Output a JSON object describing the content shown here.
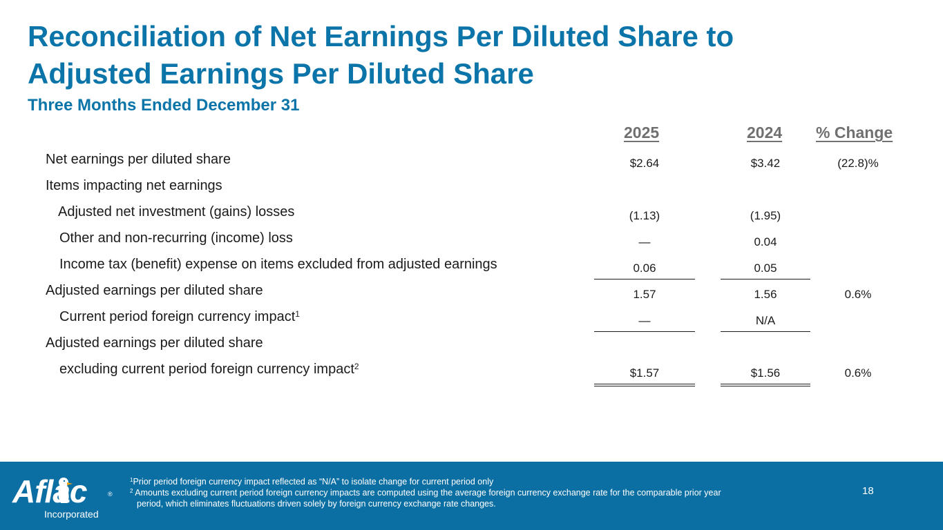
{
  "title": "Reconciliation of Net Earnings Per Diluted Share to Adjusted Earnings Per Diluted Share",
  "subtitle": "Three Months Ended December 31",
  "columns": {
    "y2025": "2025",
    "y2024": "2024",
    "pct": "% Change"
  },
  "rows": [
    {
      "label": "Net earnings per diluted share",
      "v2025": "$2.64",
      "v2024": "$3.42",
      "pct": "(22.8)%"
    },
    {
      "label": "Items impacting net earnings",
      "v2025": "",
      "v2024": "",
      "pct": ""
    },
    {
      "label": "Adjusted net investment (gains) losses",
      "v2025": "(1.13)",
      "v2024": "(1.95)",
      "pct": ""
    },
    {
      "label": "Other and non-recurring (income) loss",
      "v2025": "—",
      "v2024": "0.04",
      "pct": ""
    },
    {
      "label": "Income tax (benefit) expense on items excluded from adjusted earnings",
      "v2025": "0.06",
      "v2024": "0.05",
      "pct": ""
    },
    {
      "label": "Adjusted earnings per diluted share",
      "v2025": "1.57",
      "v2024": "1.56",
      "pct": "0.6%"
    },
    {
      "label": "Current period foreign currency impact",
      "sup": "1",
      "v2025": "—",
      "v2024": "N/A",
      "pct": ""
    },
    {
      "label": "Adjusted earnings per diluted share",
      "v2025": "",
      "v2024": "",
      "pct": ""
    },
    {
      "label": "excluding current period foreign currency impact",
      "sup": "2",
      "v2025": "$1.57",
      "v2024": "$1.56",
      "pct": "0.6%"
    }
  ],
  "footer": {
    "logo_text": "Aflac",
    "logo_reg": "®",
    "logo_subtext": "Incorporated",
    "note1_marker": "1",
    "note1": "Prior period foreign currency impact reflected as “N/A” to isolate change for current period only",
    "note2_marker": "2",
    "note2_line1": " Amounts excluding current period foreign currency impacts are computed using the average foreign currency exchange rate for the comparable prior year",
    "note2_line2": "period, which eliminates fluctuations driven solely by foreign currency exchange rate changes.",
    "page_number": "18"
  },
  "colors": {
    "brand_blue": "#0b74a8",
    "footer_blue": "#0b6fa4",
    "header_gray": "#707070"
  }
}
